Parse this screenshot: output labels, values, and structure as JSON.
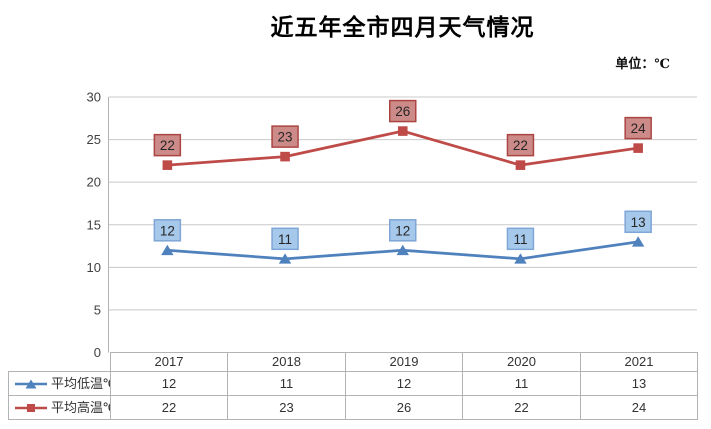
{
  "title": "近五年全市四月天气情况",
  "unit_label": "单位：℃",
  "chart_data": {
    "type": "line",
    "title": "近五年全市四月天气情况",
    "categories": [
      "2017",
      "2018",
      "2019",
      "2020",
      "2021"
    ],
    "series": [
      {
        "name": "平均低温℃",
        "values": [
          12,
          11,
          12,
          11,
          13
        ],
        "color": "#4F81BD",
        "marker": "triangle",
        "label_fill": "#A6C8EB",
        "label_border": "#7EA6D6"
      },
      {
        "name": "平均高温℃",
        "values": [
          22,
          23,
          26,
          22,
          24
        ],
        "color": "#BE4B48",
        "marker": "square",
        "label_fill": "#CC8B89",
        "label_border": "#AC4542"
      }
    ],
    "xlabel": "",
    "ylabel": "",
    "ylim": [
      0,
      30
    ],
    "ytick_step": 5,
    "grid": true,
    "data_labels": true,
    "legend_position": "data-table-left",
    "show_data_table": true
  }
}
